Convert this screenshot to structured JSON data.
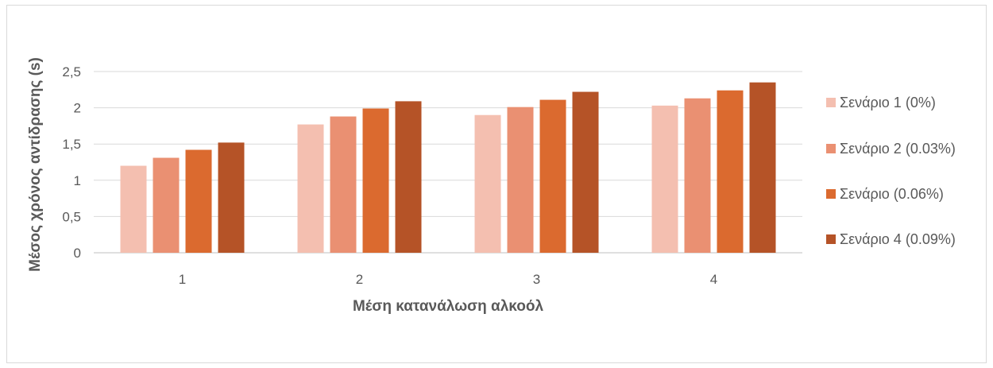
{
  "chart_data": {
    "type": "bar",
    "categories": [
      "1",
      "2",
      "3",
      "4"
    ],
    "series": [
      {
        "name": "Σενάριο 1 (0%)",
        "color": "#f4bfb0",
        "values": [
          1.2,
          1.77,
          1.9,
          2.03
        ]
      },
      {
        "name": "Σενάριο 2 (0.03%)",
        "color": "#ea9072",
        "values": [
          1.31,
          1.88,
          2.01,
          2.13
        ]
      },
      {
        "name": "Σενάριο (0.06%)",
        "color": "#db6a2f",
        "values": [
          1.42,
          1.99,
          2.11,
          2.24
        ]
      },
      {
        "name": "Σενάριο 4 (0.09%)",
        "color": "#b55327",
        "values": [
          1.52,
          2.09,
          2.22,
          2.35
        ]
      }
    ],
    "yticks": [
      "0",
      "0,5",
      "1",
      "1,5",
      "2",
      "2,5"
    ],
    "ylim": [
      0,
      2.5
    ],
    "xlabel": "Μέση κατανάλωση αλκοόλ",
    "ylabel": "Μέσος χρόνος αντίδρασης (s)",
    "title": "",
    "grid": true,
    "legend_position": "right"
  }
}
